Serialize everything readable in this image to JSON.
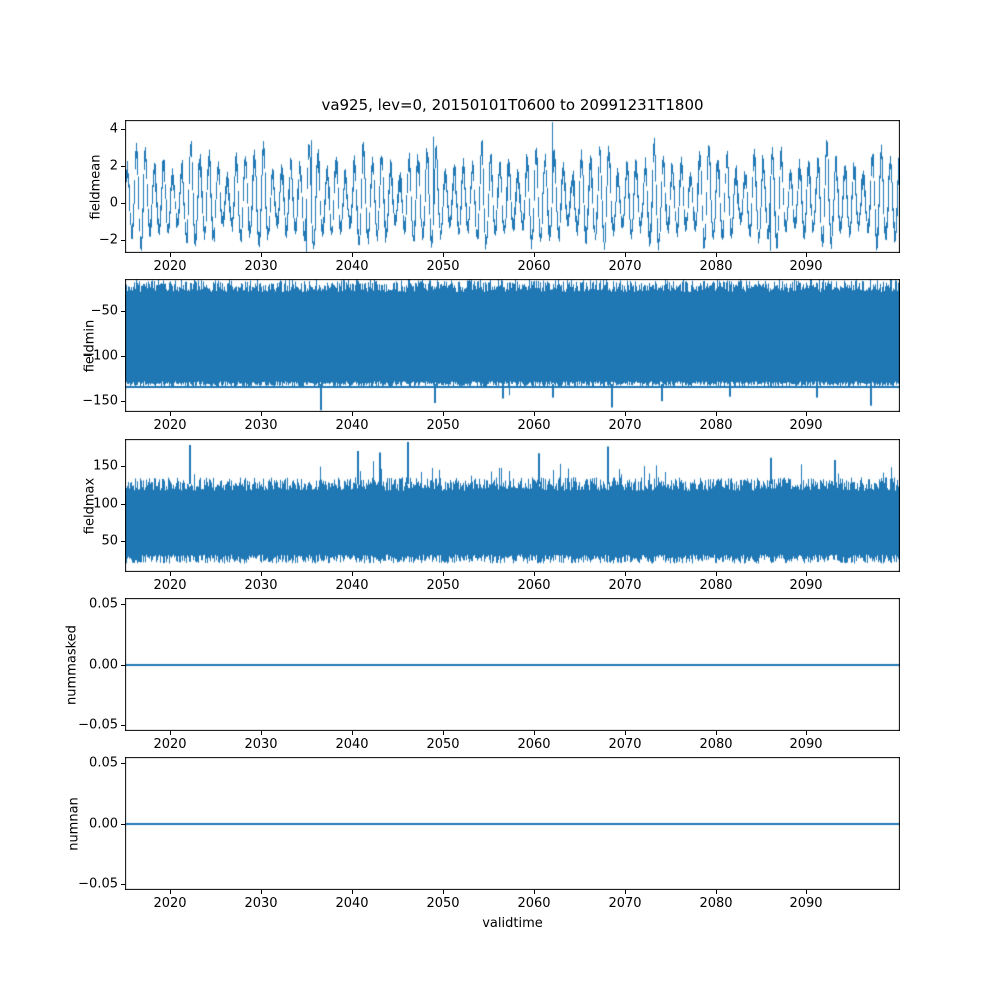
{
  "figure": {
    "title": "va925, lev=0, 20150101T0600 to 20991231T1800",
    "xlabel": "validtime",
    "line_color": "#1f77b4",
    "background": "#ffffff"
  },
  "chart_data": [
    {
      "type": "line",
      "ylabel": "fieldmean",
      "xlim": [
        2015,
        2100.3
      ],
      "ylim": [
        -2.72,
        4.5
      ],
      "xtick_values": [
        2020,
        2030,
        2040,
        2050,
        2060,
        2070,
        2080,
        2090
      ],
      "xtick_labels": [
        "2020",
        "2030",
        "2040",
        "2050",
        "2060",
        "2070",
        "2080",
        "2090"
      ],
      "ytick_values": [
        -2,
        0,
        2,
        4
      ],
      "ytick_labels": [
        "−2",
        "0",
        "2",
        "4"
      ],
      "seed": 7,
      "series": [
        {
          "name": "fieldmean",
          "kind": "oscillating-noise",
          "period_years": 1,
          "amp_base": 2.0,
          "amp_var": 0.9,
          "noise": 0.45,
          "pos_scale": 1.08,
          "neg_scale": 0.82,
          "peaks": [
            {
              "x": 2062,
              "value": 4.38
            },
            {
              "x": 2049,
              "value": 3.6
            },
            {
              "x": 2035.5,
              "value": 3.4
            }
          ],
          "dips": [
            {
              "x": 2035,
              "value": -2.65
            },
            {
              "x": 2086,
              "value": -2.6
            }
          ],
          "envelope": {
            "top_typical": 3.0,
            "top_max": 4.38,
            "bottom_typical": -2.3,
            "bottom_min": -2.65
          }
        }
      ]
    },
    {
      "type": "line",
      "ylabel": "fieldmin",
      "xlim": [
        2015,
        2100.3
      ],
      "ylim": [
        -162,
        -14.5
      ],
      "xtick_values": [
        2020,
        2030,
        2040,
        2050,
        2060,
        2070,
        2080,
        2090
      ],
      "xtick_labels": [
        "2020",
        "2030",
        "2040",
        "2050",
        "2060",
        "2070",
        "2080",
        "2090"
      ],
      "ytick_values": [
        -50,
        -100,
        -150
      ],
      "ytick_labels": [
        "−50",
        "−100",
        "−150"
      ],
      "seed": 11,
      "series": [
        {
          "name": "fieldmin",
          "kind": "band-noise",
          "top_base": -22,
          "top_jitter": 7,
          "bottom_base": -131,
          "bottom_jitter": 3,
          "floor_value": -133.5,
          "spike_side": "bottom",
          "spike_chance": 0.004,
          "spike_extra": 10,
          "spikes": [
            {
              "x": 2036.5,
              "value": -160
            },
            {
              "x": 2049,
              "value": -152
            },
            {
              "x": 2056.5,
              "value": -147
            },
            {
              "x": 2062,
              "value": -146
            },
            {
              "x": 2068.5,
              "value": -157
            },
            {
              "x": 2074,
              "value": -150
            },
            {
              "x": 2081.5,
              "value": -145
            },
            {
              "x": 2091,
              "value": -146
            },
            {
              "x": 2097,
              "value": -155
            }
          ]
        }
      ]
    },
    {
      "type": "line",
      "ylabel": "fieldmax",
      "xlim": [
        2015,
        2100.3
      ],
      "ylim": [
        8.7,
        186
      ],
      "xtick_values": [
        2020,
        2030,
        2040,
        2050,
        2060,
        2070,
        2080,
        2090
      ],
      "xtick_labels": [
        "2020",
        "2030",
        "2040",
        "2050",
        "2060",
        "2070",
        "2080",
        "2090"
      ],
      "ytick_values": [
        50,
        100,
        150
      ],
      "ytick_labels": [
        "50",
        "100",
        "150"
      ],
      "seed": 13,
      "series": [
        {
          "name": "fieldmax",
          "kind": "band-noise",
          "top_base": 126,
          "top_jitter": 9,
          "bottom_base": 26,
          "bottom_jitter": 6,
          "spike_side": "top",
          "spike_chance": 0.06,
          "spike_extra": 30,
          "spikes": [
            {
              "x": 2022,
              "value": 178
            },
            {
              "x": 2040.5,
              "value": 170
            },
            {
              "x": 2043,
              "value": 168
            },
            {
              "x": 2046,
              "value": 182
            },
            {
              "x": 2060.5,
              "value": 167
            },
            {
              "x": 2068,
              "value": 176
            },
            {
              "x": 2086,
              "value": 161
            },
            {
              "x": 2093,
              "value": 158
            }
          ]
        }
      ]
    },
    {
      "type": "line",
      "ylabel": "nummasked",
      "xlim": [
        2015,
        2100.3
      ],
      "ylim": [
        -0.055,
        0.055
      ],
      "xtick_values": [
        2020,
        2030,
        2040,
        2050,
        2060,
        2070,
        2080,
        2090
      ],
      "xtick_labels": [
        "2020",
        "2030",
        "2040",
        "2050",
        "2060",
        "2070",
        "2080",
        "2090"
      ],
      "ytick_values": [
        -0.05,
        0,
        0.05
      ],
      "ytick_labels": [
        "−0.05",
        "0.00",
        "0.05"
      ],
      "seed": 17,
      "series": [
        {
          "name": "nummasked",
          "kind": "constant",
          "value": 0
        }
      ]
    },
    {
      "type": "line",
      "ylabel": "numnan",
      "xlim": [
        2015,
        2100.3
      ],
      "ylim": [
        -0.055,
        0.055
      ],
      "xtick_values": [
        2020,
        2030,
        2040,
        2050,
        2060,
        2070,
        2080,
        2090
      ],
      "xtick_labels": [
        "2020",
        "2030",
        "2040",
        "2050",
        "2060",
        "2070",
        "2080",
        "2090"
      ],
      "ytick_values": [
        -0.05,
        0,
        0.05
      ],
      "ytick_labels": [
        "−0.05",
        "0.00",
        "0.05"
      ],
      "seed": 19,
      "series": [
        {
          "name": "numnan",
          "kind": "constant",
          "value": 0
        }
      ]
    }
  ]
}
